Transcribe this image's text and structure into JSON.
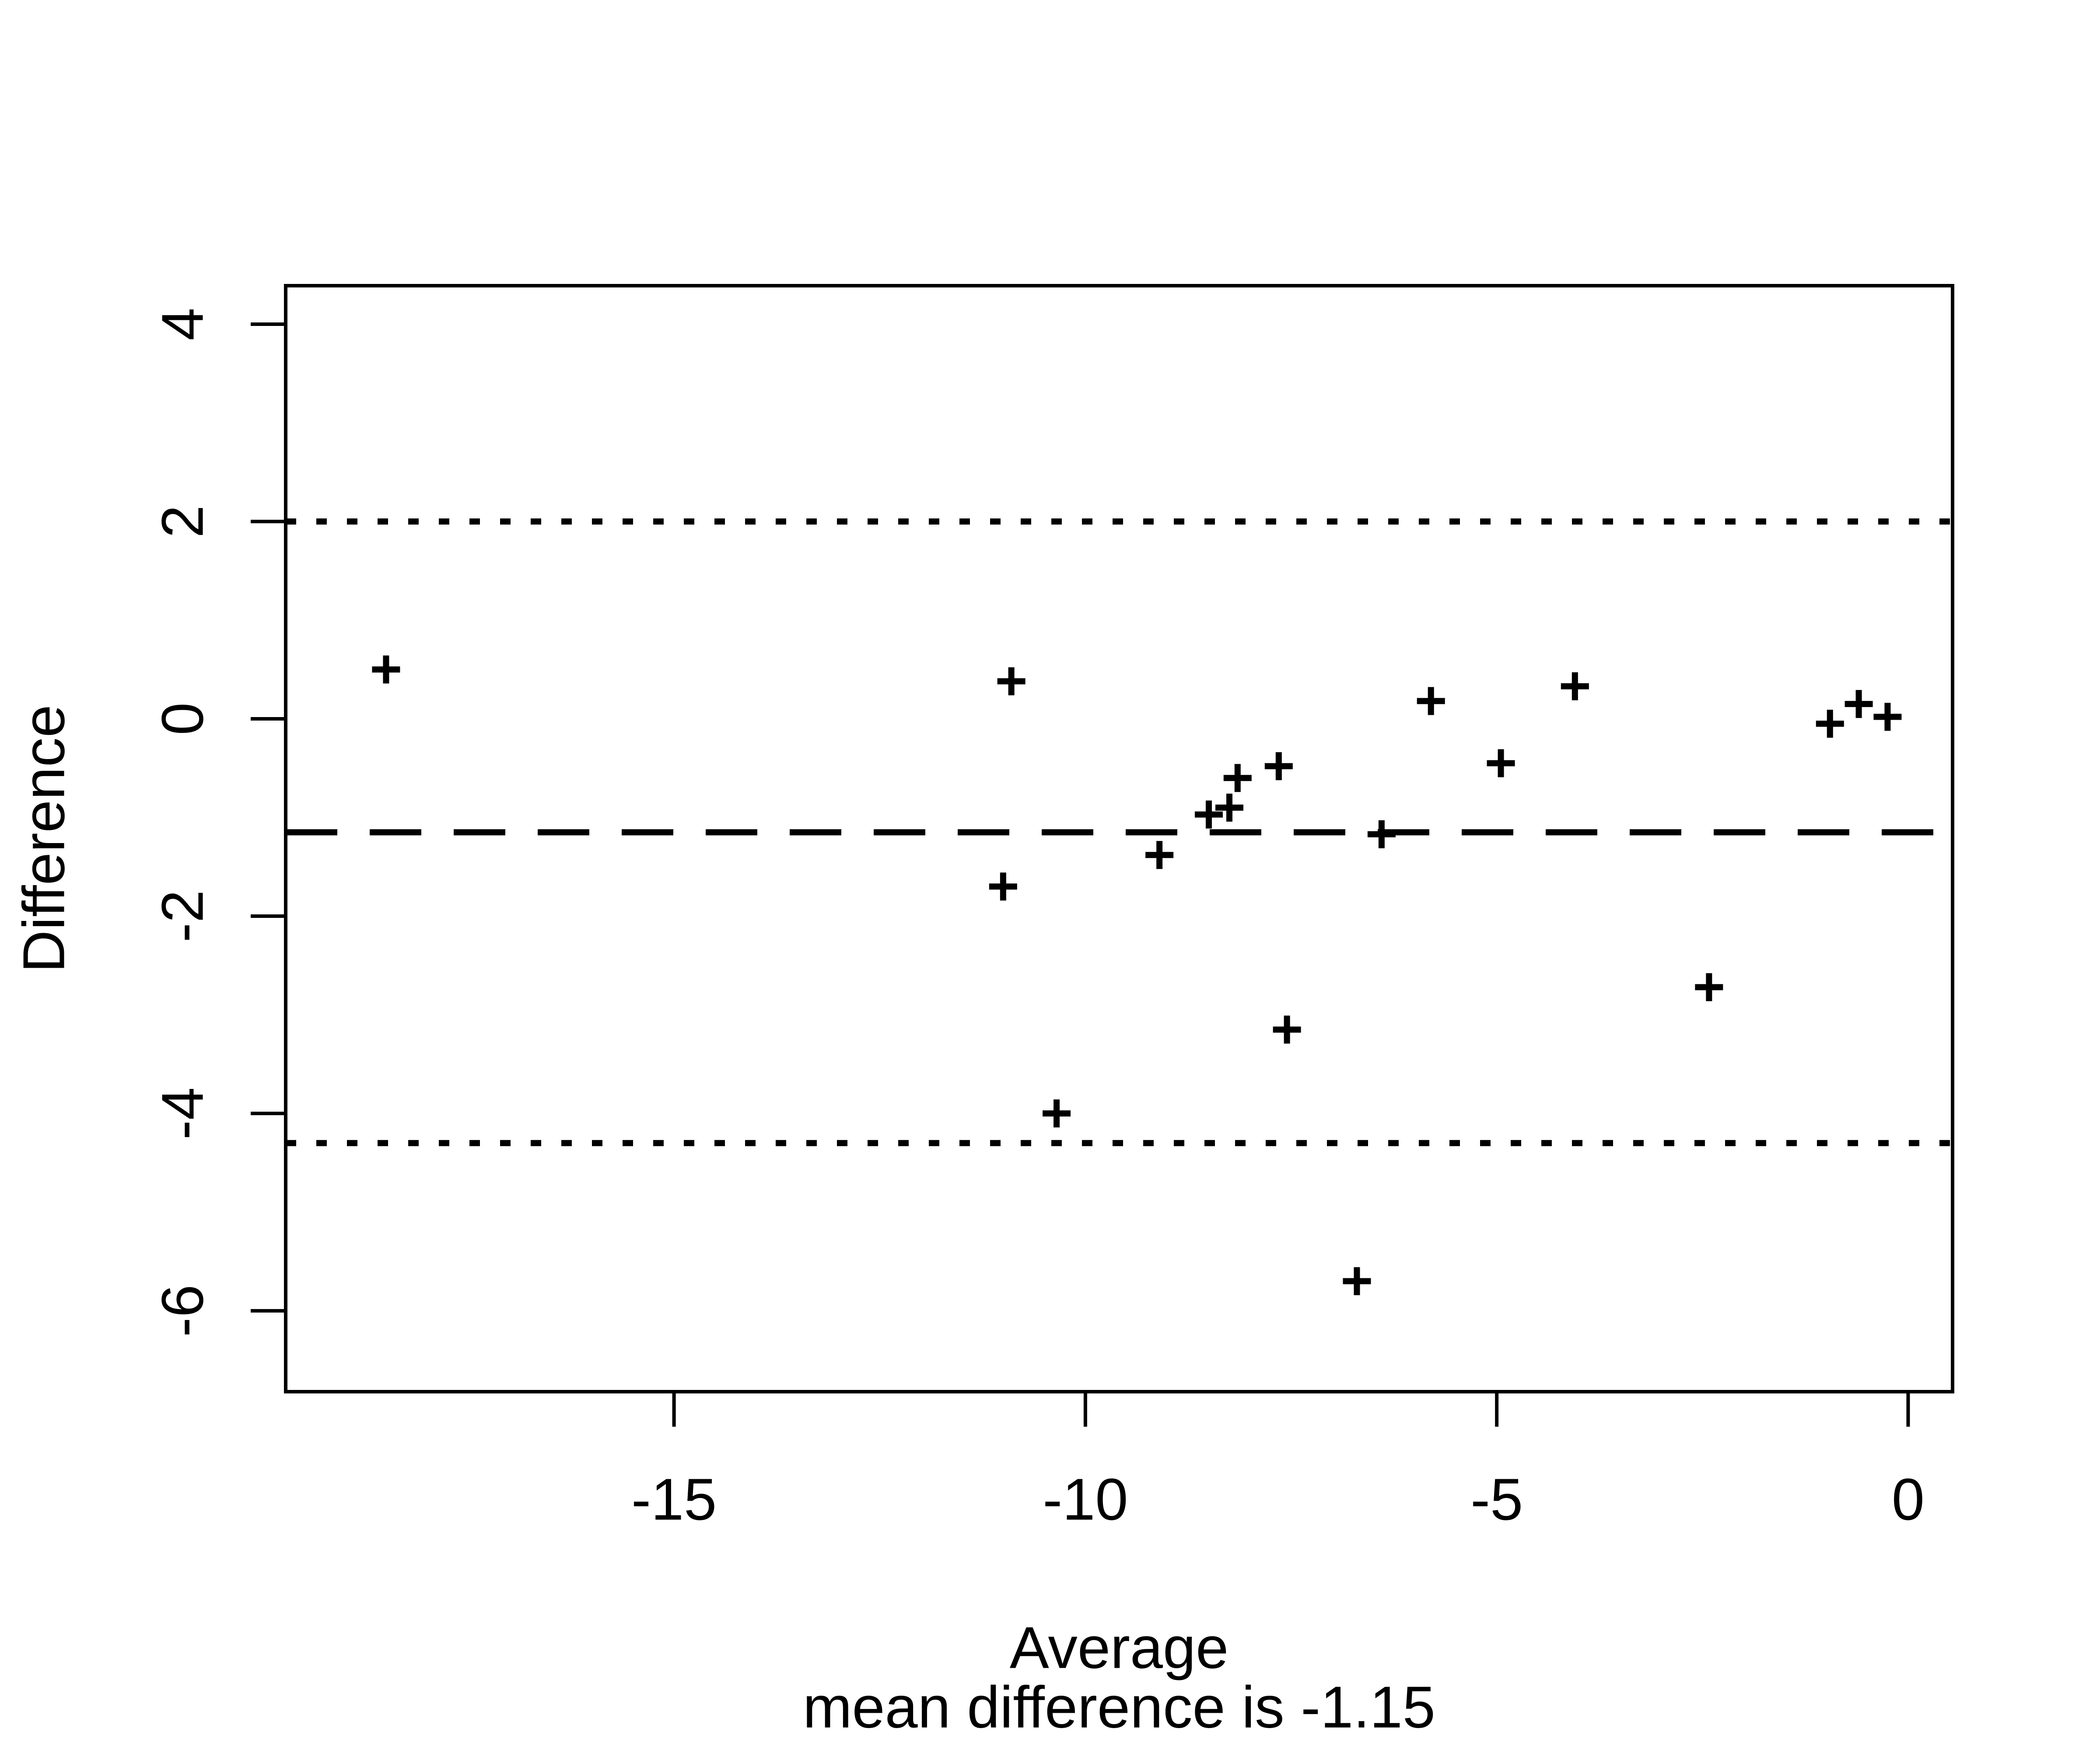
{
  "chart_data": {
    "type": "scatter",
    "title": "",
    "xlabel": "Average",
    "ylabel": "Difference",
    "annotation": "mean difference is -1.15",
    "marker": "plus",
    "grid": false,
    "legend": null,
    "xlim": [
      -19.72,
      0.54
    ],
    "ylim": [
      -6.82,
      4.39
    ],
    "x_tick_labels": [
      "-15",
      "-10",
      "-5",
      "0"
    ],
    "x_tick_values": [
      -15,
      -10,
      -5,
      0
    ],
    "y_tick_labels": [
      "4",
      "2",
      "0",
      "-2",
      "-4",
      "-6"
    ],
    "y_tick_values": [
      4,
      2,
      0,
      -2,
      -4,
      -6
    ],
    "mean_difference": -1.15,
    "upper_limit": 2.0,
    "lower_limit": -4.3,
    "points": [
      [
        -18.5,
        0.5
      ],
      [
        -10.9,
        0.38
      ],
      [
        -11.0,
        -1.7
      ],
      [
        -10.35,
        -4.0
      ],
      [
        -9.1,
        -1.38
      ],
      [
        -8.5,
        -0.97
      ],
      [
        -8.25,
        -0.9
      ],
      [
        -8.15,
        -0.6
      ],
      [
        -7.65,
        -0.48
      ],
      [
        -7.55,
        -3.15
      ],
      [
        -6.7,
        -5.7
      ],
      [
        -6.4,
        -1.17
      ],
      [
        -5.8,
        0.18
      ],
      [
        -4.95,
        -0.45
      ],
      [
        -4.05,
        0.33
      ],
      [
        -2.42,
        -2.72
      ],
      [
        -0.95,
        -0.05
      ],
      [
        -0.6,
        0.15
      ],
      [
        -0.25,
        0.02
      ]
    ]
  },
  "colors": {
    "foreground": "#000000",
    "background": "#ffffff"
  }
}
